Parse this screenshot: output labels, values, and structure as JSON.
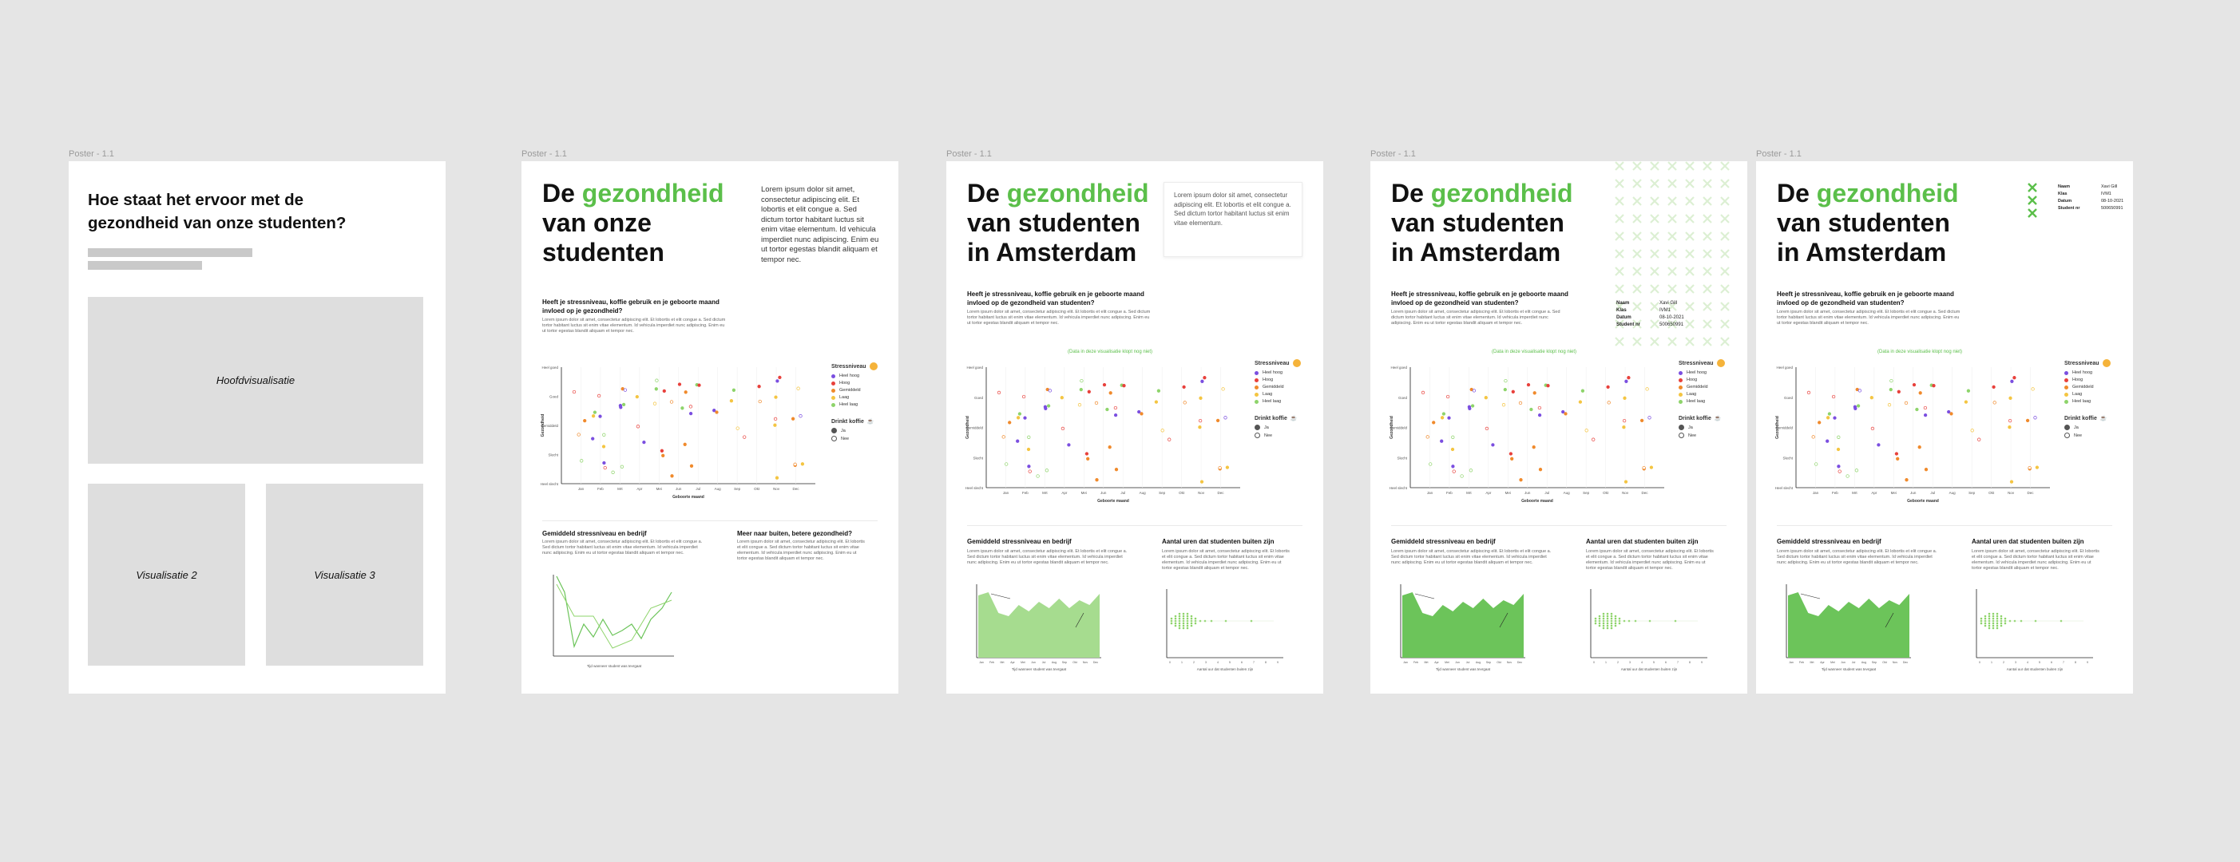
{
  "frame_label": "Poster - 1.1",
  "poster1": {
    "title": "Hoe staat het ervoor met de gezondheid van onze studenten?",
    "main_vis": "Hoofdvisualisatie",
    "vis2": "Visualisatie 2",
    "vis3": "Visualisatie 3"
  },
  "poster2": {
    "title_pre": "De ",
    "title_hl": "gezondheid",
    "title_rest": "van onze studenten",
    "intro": "Lorem ipsum dolor sit amet, consectetur adipiscing elit. Et lobortis et elit congue a. Sed dictum tortor habitant luctus sit enim vitae elementum. Id vehicula imperdiet nunc adipiscing. Enim eu ut tortor egestas blandit aliquam et tempor nec.",
    "question": "Heeft je stressniveau, koffie gebruik en je geboorte maand invloed op je gezondheid?",
    "section1_title": "Gemiddeld stressniveau en bedrijf",
    "section2_title": "Meer naar buiten, betere gezondheid?"
  },
  "posters_final": {
    "title_pre": "De ",
    "title_hl": "gezondheid",
    "title_rest1": "van studenten",
    "title_rest2": "in Amsterdam",
    "intro": "Lorem ipsum dolor sit amet, consectetur adipiscing elit. Et lobortis et elit congue a. Sed dictum tortor habitant luctus sit enim vitae elementum.",
    "question": "Heeft je stressniveau, koffie gebruik en je geboorte maand invloed op de gezondheid van studenten?",
    "note": "(Data in deze visualisatie klopt nog niet)",
    "section1_title": "Gemiddeld stressniveau en bedrijf",
    "section2_title": "Aantal uren dat studenten buiten zijn",
    "x_axis": "Geboorte maand",
    "y_axis": "Gezondheid",
    "area_x_axis": "Tijd wanneer student was tevrgaat",
    "bee_x_axis": "Aantal uur dat studenten buiten zijn"
  },
  "body_text": "Lorem ipsum dolor sit amet, consectetur adipiscing elit. Et lobortis et elit congue a. Sed dictum tortor habitant luctus sit enim vitae elementum. Id vehicula imperdiet nunc adipiscing. Enim eu ut tortor egestas blandit aliquam et tempor nec.",
  "legend": {
    "stress_title": "Stressniveau",
    "stress_items": [
      "Heel hoog",
      "Hoog",
      "Gemiddeld",
      "Laag",
      "Heel laag"
    ],
    "coffee_title": "Drinkt koffie",
    "coffee_items": [
      "Ja",
      "Nee"
    ]
  },
  "student_info": {
    "labels": [
      "Naam",
      "Klas",
      "Datum",
      "Student nr"
    ],
    "values": [
      "Xavi Gill",
      "IVM1",
      "08-10-2021",
      "500650991"
    ]
  },
  "colors": {
    "accent": "#5bbf4a",
    "stress": [
      "#7b4fe0",
      "#e8413c",
      "#f08a2c",
      "#f4c542",
      "#8ed46b"
    ]
  },
  "y_ticks": [
    "Heel goed",
    "Goed",
    "Gemiddeld",
    "Slecht",
    "Heel slecht"
  ],
  "months": [
    "Jan",
    "Feb",
    "Mrt",
    "Apr",
    "Mei",
    "Jun",
    "Jul",
    "Aug",
    "Sep",
    "Okt",
    "Nov",
    "Dec"
  ]
}
